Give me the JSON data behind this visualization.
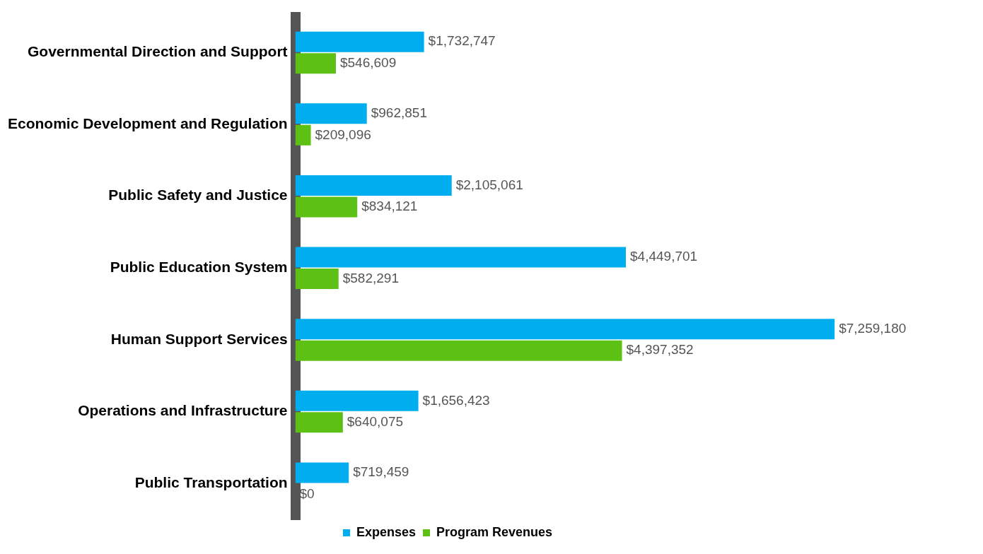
{
  "chart_data": {
    "type": "bar",
    "orientation": "horizontal",
    "categories": [
      "Governmental Direction and Support",
      "Economic Development and Regulation",
      "Public Safety and Justice",
      "Public Education System",
      "Human Support Services",
      "Operations and Infrastructure",
      "Public Transportation"
    ],
    "series": [
      {
        "name": "Expenses",
        "color": "#00aeef",
        "values": [
          1732747,
          962851,
          2105061,
          4449701,
          7259180,
          1656423,
          719459
        ],
        "value_labels": [
          "$1,732,747",
          "$962,851",
          "$2,105,061",
          "$4,449,701",
          "$7,259,180",
          "$1,656,423",
          "$719,459"
        ]
      },
      {
        "name": "Program Revenues",
        "color": "#5cc015",
        "values": [
          546609,
          209096,
          834121,
          582291,
          4397352,
          640075,
          0
        ],
        "value_labels": [
          "$546,609",
          "$209,096",
          "$834,121",
          "$582,291",
          "$4,397,352",
          "$640,075",
          "$0"
        ]
      }
    ],
    "legend": "bottom",
    "grid": false
  }
}
